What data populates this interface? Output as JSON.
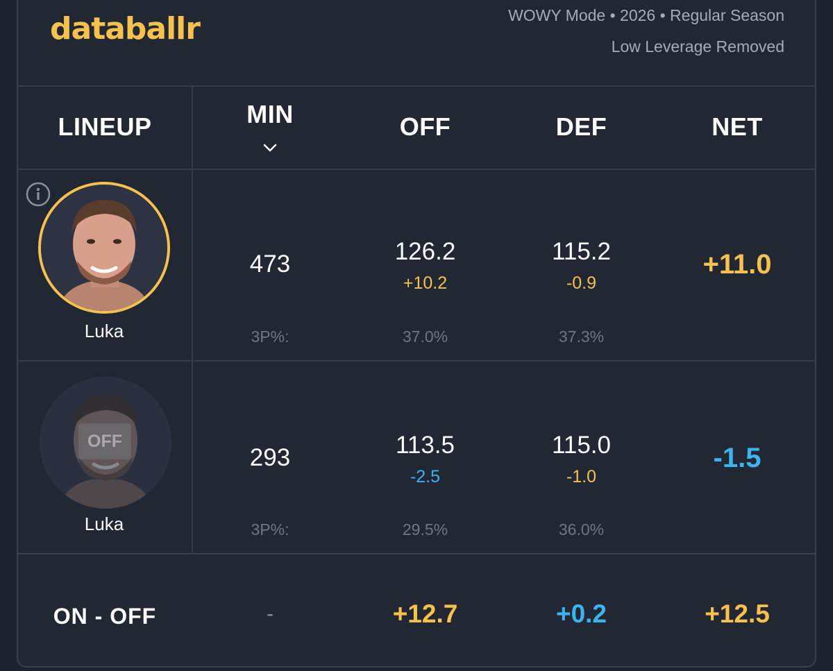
{
  "header": {
    "brand": "databallr",
    "subtitle_line1": "WOWY Mode • 2026 • Regular Season",
    "subtitle_line2": "Low Leverage Removed"
  },
  "columns": {
    "lineup": "LINEUP",
    "min": "MIN",
    "off": "OFF",
    "def": "DEF",
    "net": "NET",
    "sort_icon": "chevron-down-icon"
  },
  "rows": [
    {
      "player": "Luka",
      "status": "on",
      "min": "473",
      "off": "126.2",
      "off_diff": "+10.2",
      "def": "115.2",
      "def_diff": "-0.9",
      "net": "+11.0",
      "pct_label": "3P%:",
      "off_pct": "37.0%",
      "def_pct": "37.3%"
    },
    {
      "player": "Luka",
      "status": "off",
      "badge": "OFF",
      "min": "293",
      "off": "113.5",
      "off_diff": "-2.5",
      "def": "115.0",
      "def_diff": "-1.0",
      "net": "-1.5",
      "pct_label": "3P%:",
      "off_pct": "29.5%",
      "def_pct": "36.0%"
    }
  ],
  "summary": {
    "label": "ON - OFF",
    "min": "-",
    "off": "+12.7",
    "def": "+0.2",
    "net": "+12.5"
  },
  "colors": {
    "accent_gold": "#f6c24b",
    "accent_blue": "#3cb4ee",
    "background": "#1f2330"
  }
}
